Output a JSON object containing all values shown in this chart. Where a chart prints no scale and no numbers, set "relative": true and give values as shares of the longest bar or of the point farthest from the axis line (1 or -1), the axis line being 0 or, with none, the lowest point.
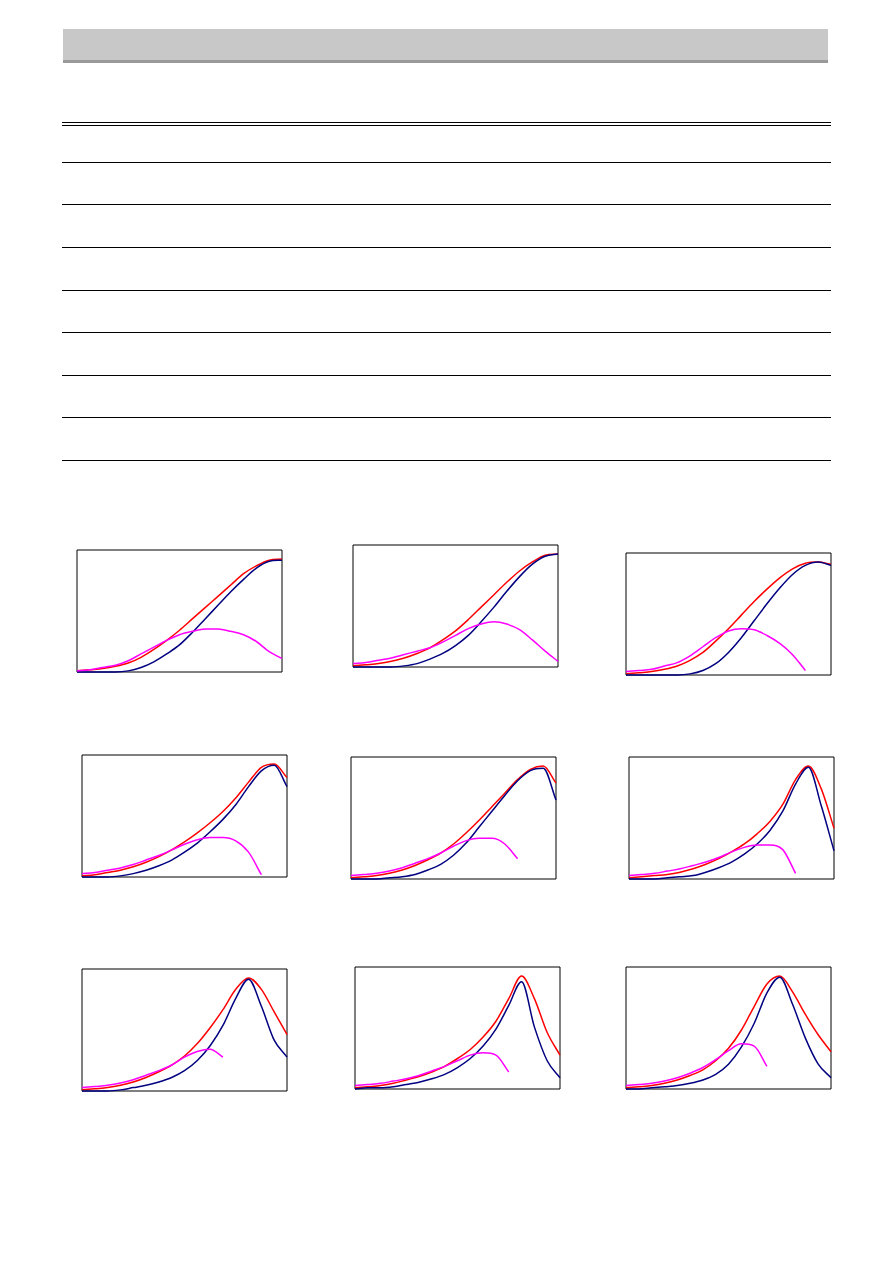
{
  "chart_data": [
    {
      "type": "line",
      "relative": true,
      "categories": [
        null,
        null,
        null,
        null,
        null,
        null,
        null,
        null,
        null,
        null,
        null,
        null,
        null,
        null,
        null,
        null,
        null
      ],
      "series": [
        {
          "color": "#ff0000",
          "values": [
            0.01,
            0.02,
            0.03,
            0.05,
            0.08,
            0.13,
            0.2,
            0.28,
            0.37,
            0.47,
            0.57,
            0.67,
            0.77,
            0.87,
            0.94,
            0.99,
            1.0
          ]
        },
        {
          "color": "#000080",
          "values": [
            0,
            0,
            0,
            0,
            0.01,
            0.04,
            0.09,
            0.16,
            0.24,
            0.35,
            0.47,
            0.59,
            0.71,
            0.82,
            0.92,
            0.98,
            0.99
          ]
        },
        {
          "color": "#ff00ff",
          "values": [
            0.01,
            0.02,
            0.04,
            0.06,
            0.1,
            0.16,
            0.22,
            0.28,
            0.33,
            0.36,
            0.38,
            0.38,
            0.36,
            0.33,
            0.27,
            0.18,
            0.12
          ]
        }
      ]
    },
    {
      "type": "line",
      "relative": true,
      "categories": [
        null,
        null,
        null,
        null,
        null,
        null,
        null,
        null,
        null,
        null,
        null,
        null,
        null,
        null,
        null,
        null,
        null
      ],
      "series": [
        {
          "color": "#ff0000",
          "values": [
            0.01,
            0.02,
            0.03,
            0.05,
            0.08,
            0.12,
            0.17,
            0.24,
            0.32,
            0.42,
            0.53,
            0.64,
            0.75,
            0.85,
            0.93,
            0.99,
            1.0
          ]
        },
        {
          "color": "#000080",
          "values": [
            0,
            0,
            0,
            0,
            0.01,
            0.03,
            0.07,
            0.12,
            0.19,
            0.28,
            0.4,
            0.53,
            0.67,
            0.8,
            0.91,
            0.98,
            1.0
          ]
        },
        {
          "color": "#ff00ff",
          "values": [
            0.03,
            0.04,
            0.06,
            0.08,
            0.11,
            0.14,
            0.17,
            0.22,
            0.28,
            0.34,
            0.38,
            0.4,
            0.38,
            0.33,
            0.24,
            0.14,
            0.05
          ]
        }
      ]
    },
    {
      "type": "line",
      "relative": true,
      "categories": [
        null,
        null,
        null,
        null,
        null,
        null,
        null,
        null,
        null,
        null,
        null,
        null,
        null,
        null,
        null,
        null,
        null
      ],
      "series": [
        {
          "color": "#ff0000",
          "values": [
            0.01,
            0.02,
            0.03,
            0.05,
            0.08,
            0.13,
            0.2,
            0.3,
            0.41,
            0.53,
            0.65,
            0.76,
            0.86,
            0.94,
            0.99,
            1.0,
            0.98
          ]
        },
        {
          "color": "#000080",
          "values": [
            0,
            0,
            0,
            0,
            0,
            0.01,
            0.04,
            0.1,
            0.2,
            0.33,
            0.48,
            0.63,
            0.77,
            0.89,
            0.97,
            1.0,
            0.97
          ]
        },
        {
          "color": "#ff00ff",
          "values": [
            0.03,
            0.04,
            0.05,
            0.08,
            0.11,
            0.17,
            0.25,
            0.33,
            0.39,
            0.41,
            0.4,
            0.35,
            0.28,
            0.18,
            0.04,
            null,
            null
          ]
        }
      ]
    },
    {
      "type": "line",
      "relative": true,
      "categories": [
        null,
        null,
        null,
        null,
        null,
        null,
        null,
        null,
        null,
        null,
        null,
        null,
        null,
        null,
        null,
        null,
        null
      ],
      "series": [
        {
          "color": "#ff0000",
          "values": [
            0.01,
            0.02,
            0.04,
            0.06,
            0.09,
            0.13,
            0.18,
            0.24,
            0.31,
            0.39,
            0.48,
            0.58,
            0.7,
            0.84,
            0.97,
            1.0,
            0.88
          ]
        },
        {
          "color": "#000080",
          "values": [
            0,
            0,
            0,
            0.01,
            0.03,
            0.06,
            0.1,
            0.15,
            0.22,
            0.3,
            0.4,
            0.51,
            0.64,
            0.8,
            0.94,
            0.99,
            0.8
          ]
        },
        {
          "color": "#ff00ff",
          "values": [
            0.03,
            0.04,
            0.06,
            0.08,
            0.11,
            0.15,
            0.19,
            0.24,
            0.29,
            0.33,
            0.35,
            0.35,
            0.32,
            0.22,
            0.02,
            null,
            null
          ]
        }
      ]
    },
    {
      "type": "line",
      "relative": true,
      "categories": [
        null,
        null,
        null,
        null,
        null,
        null,
        null,
        null,
        null,
        null,
        null,
        null,
        null,
        null,
        null,
        null,
        null
      ],
      "series": [
        {
          "color": "#ff0000",
          "values": [
            0.01,
            0.02,
            0.03,
            0.05,
            0.08,
            0.12,
            0.17,
            0.23,
            0.31,
            0.41,
            0.52,
            0.64,
            0.76,
            0.88,
            0.97,
            1.0,
            0.85
          ]
        },
        {
          "color": "#000080",
          "values": [
            0,
            0,
            0,
            0.01,
            0.02,
            0.04,
            0.08,
            0.13,
            0.21,
            0.32,
            0.46,
            0.6,
            0.74,
            0.87,
            0.96,
            0.98,
            0.7
          ]
        },
        {
          "color": "#ff00ff",
          "values": [
            0.03,
            0.04,
            0.05,
            0.07,
            0.1,
            0.14,
            0.18,
            0.23,
            0.29,
            0.34,
            0.36,
            0.36,
            0.31,
            0.18,
            null,
            null,
            null
          ]
        }
      ]
    },
    {
      "type": "line",
      "relative": true,
      "categories": [
        null,
        null,
        null,
        null,
        null,
        null,
        null,
        null,
        null,
        null,
        null,
        null,
        null,
        null,
        null,
        null,
        null
      ],
      "series": [
        {
          "color": "#ff0000",
          "values": [
            0.01,
            0.02,
            0.03,
            0.04,
            0.06,
            0.09,
            0.13,
            0.18,
            0.24,
            0.31,
            0.4,
            0.51,
            0.66,
            0.88,
            1.0,
            0.8,
            0.45
          ]
        },
        {
          "color": "#000080",
          "values": [
            0,
            0,
            0,
            0.01,
            0.02,
            0.03,
            0.06,
            0.1,
            0.15,
            0.22,
            0.31,
            0.43,
            0.6,
            0.84,
            0.99,
            0.65,
            0.25
          ]
        },
        {
          "color": "#ff00ff",
          "values": [
            0.03,
            0.04,
            0.05,
            0.07,
            0.09,
            0.12,
            0.15,
            0.19,
            0.24,
            0.28,
            0.3,
            0.3,
            0.26,
            0.05,
            null,
            null,
            null
          ]
        }
      ]
    },
    {
      "type": "line",
      "relative": true,
      "categories": [
        null,
        null,
        null,
        null,
        null,
        null,
        null,
        null,
        null,
        null,
        null,
        null,
        null,
        null,
        null,
        null,
        null
      ],
      "series": [
        {
          "color": "#ff0000",
          "values": [
            0.01,
            0.02,
            0.03,
            0.05,
            0.08,
            0.12,
            0.17,
            0.23,
            0.31,
            0.42,
            0.56,
            0.72,
            0.9,
            1.0,
            0.9,
            0.7,
            0.5
          ]
        },
        {
          "color": "#000080",
          "values": [
            0,
            0,
            0,
            0.01,
            0.03,
            0.05,
            0.08,
            0.12,
            0.18,
            0.27,
            0.4,
            0.58,
            0.82,
            0.99,
            0.75,
            0.45,
            0.3
          ]
        },
        {
          "color": "#ff00ff",
          "values": [
            0.03,
            0.04,
            0.05,
            0.07,
            0.1,
            0.14,
            0.18,
            0.23,
            0.3,
            0.35,
            0.37,
            0.3,
            null,
            null,
            null,
            null,
            null
          ]
        }
      ]
    },
    {
      "type": "line",
      "relative": true,
      "categories": [
        null,
        null,
        null,
        null,
        null,
        null,
        null,
        null,
        null,
        null,
        null,
        null,
        null,
        null,
        null,
        null,
        null
      ],
      "series": [
        {
          "color": "#ff0000",
          "values": [
            0.01,
            0.02,
            0.03,
            0.05,
            0.08,
            0.11,
            0.15,
            0.2,
            0.27,
            0.35,
            0.46,
            0.6,
            0.8,
            1.0,
            0.8,
            0.5,
            0.3
          ]
        },
        {
          "color": "#000080",
          "values": [
            0,
            0.01,
            0.01,
            0.02,
            0.04,
            0.06,
            0.09,
            0.13,
            0.19,
            0.27,
            0.38,
            0.53,
            0.74,
            0.95,
            0.55,
            0.25,
            0.1
          ]
        },
        {
          "color": "#ff00ff",
          "values": [
            0.03,
            0.04,
            0.05,
            0.07,
            0.09,
            0.12,
            0.16,
            0.2,
            0.25,
            0.3,
            0.32,
            0.3,
            0.15,
            null,
            null,
            null,
            null
          ]
        }
      ]
    },
    {
      "type": "line",
      "relative": true,
      "categories": [
        null,
        null,
        null,
        null,
        null,
        null,
        null,
        null,
        null,
        null,
        null,
        null,
        null,
        null,
        null,
        null,
        null
      ],
      "series": [
        {
          "color": "#ff0000",
          "values": [
            0.01,
            0.02,
            0.03,
            0.05,
            0.08,
            0.12,
            0.17,
            0.25,
            0.36,
            0.52,
            0.73,
            0.93,
            1.0,
            0.86,
            0.66,
            0.48,
            0.33
          ]
        },
        {
          "color": "#000080",
          "values": [
            0,
            0,
            0.01,
            0.02,
            0.03,
            0.05,
            0.08,
            0.13,
            0.22,
            0.37,
            0.58,
            0.85,
            0.99,
            0.75,
            0.45,
            0.22,
            0.1
          ]
        },
        {
          "color": "#ff00ff",
          "values": [
            0.03,
            0.04,
            0.05,
            0.07,
            0.1,
            0.14,
            0.19,
            0.26,
            0.34,
            0.4,
            0.38,
            0.2,
            null,
            null,
            null,
            null,
            null
          ]
        }
      ]
    }
  ]
}
